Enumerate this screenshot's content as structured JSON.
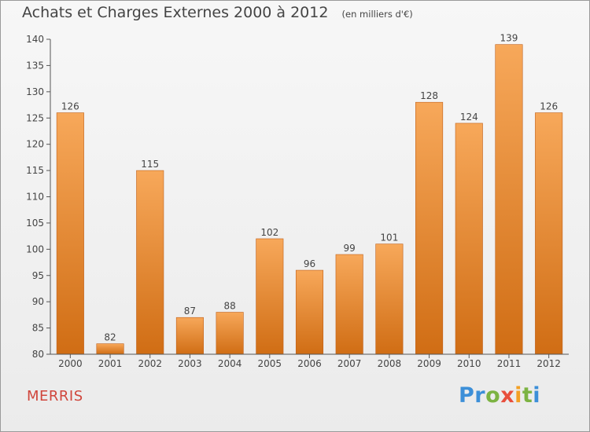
{
  "header": {
    "title": "Achats et Charges Externes 2000 à 2012",
    "unit": "(en milliers d'€)"
  },
  "commune": "MERRIS",
  "logo": {
    "text": "Proxiti",
    "letters": [
      {
        "ch": "P",
        "color": "#3c8fd8"
      },
      {
        "ch": "r",
        "color": "#3c8fd8"
      },
      {
        "ch": "o",
        "color": "#7cb342"
      },
      {
        "ch": "x",
        "color": "#e84e3c"
      },
      {
        "ch": "i",
        "color": "#f4a024"
      },
      {
        "ch": "t",
        "color": "#7cb342"
      },
      {
        "ch": "i",
        "color": "#3c8fd8"
      }
    ]
  },
  "colors": {
    "bar_light": "#f7a85a",
    "bar_dark": "#d06d14",
    "axis": "#555555",
    "grid": "#cccccc"
  },
  "chart_data": {
    "type": "bar",
    "categories": [
      "2000",
      "2001",
      "2002",
      "2003",
      "2004",
      "2005",
      "2006",
      "2007",
      "2008",
      "2009",
      "2010",
      "2011",
      "2012"
    ],
    "values": [
      126,
      82,
      115,
      87,
      88,
      102,
      96,
      99,
      101,
      128,
      124,
      139,
      126
    ],
    "title": "Achats et Charges Externes 2000 à 2012",
    "subtitle": "(en milliers d'€)",
    "ylim": [
      80,
      140
    ],
    "yticks": [
      80,
      85,
      90,
      95,
      100,
      105,
      110,
      115,
      120,
      125,
      130,
      135,
      140
    ],
    "grid": false,
    "data_labels": true
  }
}
